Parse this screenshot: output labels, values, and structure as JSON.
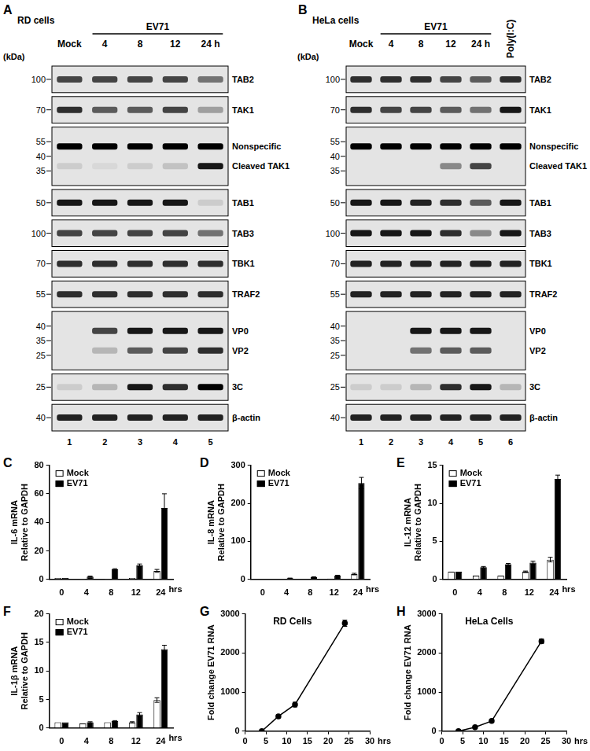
{
  "blots": [
    {
      "panel": "A",
      "title": "RD cells",
      "unit_label": "(kDa)",
      "lanes": [
        {
          "label": "Mock"
        },
        {
          "label": "4",
          "group": "EV71"
        },
        {
          "label": "8",
          "group": "EV71"
        },
        {
          "label": "12",
          "group": "EV71"
        },
        {
          "label": "24 h",
          "group": "EV71"
        }
      ],
      "lane_numbers": [
        1,
        2,
        3,
        4,
        5
      ],
      "rows": [
        {
          "markers": [
            100
          ],
          "bands": [
            {
              "name": "TAB2",
              "intensity": [
                0.7,
                0.7,
                0.7,
                0.7,
                0.5
              ]
            }
          ]
        },
        {
          "markers": [
            70
          ],
          "bands": [
            {
              "name": "TAK1",
              "intensity": [
                0.8,
                0.6,
                0.6,
                0.7,
                0.3
              ]
            }
          ]
        },
        {
          "markers": [
            55,
            40,
            35
          ],
          "bands": [
            {
              "name": "Nonspecific",
              "intensity": [
                1,
                1,
                1,
                1,
                1
              ]
            },
            {
              "name": "Cleaved TAK1",
              "intensity": [
                0.1,
                0.05,
                0.1,
                0.15,
                0.9
              ]
            }
          ]
        },
        {
          "markers": [
            50
          ],
          "bands": [
            {
              "name": "TAB1",
              "intensity": [
                0.9,
                0.9,
                0.9,
                0.9,
                0.1
              ]
            }
          ]
        },
        {
          "markers": [
            100
          ],
          "bands": [
            {
              "name": "TAB3",
              "intensity": [
                0.7,
                0.7,
                0.7,
                0.7,
                0.5
              ]
            }
          ]
        },
        {
          "markers": [
            70
          ],
          "bands": [
            {
              "name": "TBK1",
              "intensity": [
                0.8,
                0.8,
                0.8,
                0.8,
                0.8
              ]
            }
          ]
        },
        {
          "markers": [
            55
          ],
          "bands": [
            {
              "name": "TRAF2",
              "intensity": [
                0.8,
                0.8,
                0.8,
                0.8,
                0.8
              ]
            }
          ]
        },
        {
          "markers": [
            40,
            35,
            25
          ],
          "bands": [
            {
              "name": "VP0",
              "intensity": [
                0,
                0.7,
                0.9,
                0.9,
                0.9
              ]
            },
            {
              "name": "VP2",
              "intensity": [
                0,
                0.2,
                0.6,
                0.7,
                0.8
              ]
            }
          ]
        },
        {
          "markers": [
            25
          ],
          "bands": [
            {
              "name": "3C",
              "intensity": [
                0.1,
                0.2,
                0.9,
                0.8,
                1
              ]
            }
          ]
        },
        {
          "markers": [
            40
          ],
          "bands": [
            {
              "name": "β-actin",
              "intensity": [
                0.85,
                0.85,
                0.85,
                0.85,
                0.85
              ]
            }
          ]
        }
      ]
    },
    {
      "panel": "B",
      "title": "HeLa cells",
      "unit_label": "(kDa)",
      "lanes": [
        {
          "label": "Mock"
        },
        {
          "label": "4",
          "group": "EV71"
        },
        {
          "label": "8",
          "group": "EV71"
        },
        {
          "label": "12",
          "group": "EV71"
        },
        {
          "label": "24 h",
          "group": "EV71"
        },
        {
          "label": "Poly(I:C)"
        }
      ],
      "lane_numbers": [
        1,
        2,
        3,
        4,
        5,
        6
      ],
      "rows": [
        {
          "markers": [
            100
          ],
          "bands": [
            {
              "name": "TAB2",
              "intensity": [
                0.8,
                0.8,
                0.8,
                0.7,
                0.6,
                0.8
              ]
            }
          ]
        },
        {
          "markers": [
            70
          ],
          "bands": [
            {
              "name": "TAK1",
              "intensity": [
                0.8,
                0.7,
                0.7,
                0.6,
                0.5,
                0.9
              ]
            }
          ]
        },
        {
          "markers": [
            55,
            40,
            35
          ],
          "bands": [
            {
              "name": "Nonspecific",
              "intensity": [
                1,
                1,
                1,
                1,
                1,
                1
              ]
            },
            {
              "name": "Cleaved TAK1",
              "intensity": [
                0,
                0,
                0,
                0.4,
                0.7,
                0
              ]
            }
          ]
        },
        {
          "markers": [
            50
          ],
          "bands": [
            {
              "name": "TAB1",
              "intensity": [
                0.9,
                0.9,
                0.85,
                0.8,
                0.6,
                0.9
              ]
            }
          ]
        },
        {
          "markers": [
            100
          ],
          "bands": [
            {
              "name": "TAB3",
              "intensity": [
                0.9,
                0.9,
                0.9,
                0.8,
                0.4,
                0.9
              ]
            }
          ]
        },
        {
          "markers": [
            70
          ],
          "bands": [
            {
              "name": "TBK1",
              "intensity": [
                0.85,
                0.85,
                0.85,
                0.85,
                0.85,
                0.85
              ]
            }
          ]
        },
        {
          "markers": [
            55
          ],
          "bands": [
            {
              "name": "TRAF2",
              "intensity": [
                0.85,
                0.85,
                0.85,
                0.85,
                0.85,
                0.85
              ]
            }
          ]
        },
        {
          "markers": [
            40,
            35,
            25
          ],
          "bands": [
            {
              "name": "VP0",
              "intensity": [
                0,
                0,
                0.9,
                0.9,
                0.9,
                0
              ]
            },
            {
              "name": "VP2",
              "intensity": [
                0,
                0,
                0.5,
                0.6,
                0.6,
                0
              ]
            }
          ]
        },
        {
          "markers": [
            25
          ],
          "bands": [
            {
              "name": "3C",
              "intensity": [
                0.1,
                0.1,
                0.2,
                0.8,
                0.9,
                0.2
              ]
            }
          ]
        },
        {
          "markers": [
            40
          ],
          "bands": [
            {
              "name": "β-actin",
              "intensity": [
                0.85,
                0.85,
                0.85,
                0.85,
                0.85,
                0.85
              ]
            }
          ]
        }
      ]
    }
  ],
  "chart_data": [
    {
      "panel": "C",
      "type": "bar",
      "categories": [
        "0",
        "4",
        "8",
        "12",
        "24"
      ],
      "x_label": "hrs",
      "y_label": [
        "IL-6 mRNA",
        "Relative to GAPDH"
      ],
      "ylim": [
        0,
        80
      ],
      "yticks": [
        0,
        20,
        40,
        60,
        80
      ],
      "grid": false,
      "legend": "upper left",
      "series": [
        {
          "name": "Mock",
          "color": "#ffffff",
          "values": [
            1,
            0.5,
            0.5,
            1,
            6
          ],
          "errors": [
            0,
            0,
            0,
            0,
            1
          ]
        },
        {
          "name": "EV71",
          "color": "#000000",
          "values": [
            1,
            2,
            7,
            10,
            50
          ],
          "errors": [
            0,
            0.3,
            0.5,
            0.8,
            10
          ]
        }
      ]
    },
    {
      "panel": "D",
      "type": "bar",
      "categories": [
        "0",
        "4",
        "8",
        "12",
        "24"
      ],
      "x_label": "hrs",
      "y_label": [
        "IL-8 mRNA",
        "Relative to GAPDH"
      ],
      "ylim": [
        0,
        300
      ],
      "yticks": [
        0,
        100,
        200,
        300
      ],
      "grid": false,
      "legend": "upper left",
      "series": [
        {
          "name": "Mock",
          "color": "#ffffff",
          "values": [
            1,
            1,
            1,
            2,
            14
          ],
          "errors": [
            0,
            0,
            0,
            0,
            2
          ]
        },
        {
          "name": "EV71",
          "color": "#000000",
          "values": [
            1,
            3,
            6,
            10,
            253
          ],
          "errors": [
            0,
            0.5,
            1,
            1,
            15
          ]
        }
      ]
    },
    {
      "panel": "E",
      "type": "bar",
      "categories": [
        "0",
        "4",
        "8",
        "12",
        "24"
      ],
      "x_label": "hrs",
      "y_label": [
        "IL-12 mRNA",
        "Relative to GAPDH"
      ],
      "ylim": [
        0,
        15
      ],
      "yticks": [
        0,
        5,
        10,
        15
      ],
      "grid": false,
      "legend": "upper left",
      "series": [
        {
          "name": "Mock",
          "color": "#ffffff",
          "values": [
            1,
            0.5,
            0.5,
            1,
            2.6
          ],
          "errors": [
            0,
            0,
            0,
            0.1,
            0.3
          ]
        },
        {
          "name": "EV71",
          "color": "#000000",
          "values": [
            1,
            1.6,
            2,
            2.2,
            13.2
          ],
          "errors": [
            0,
            0.1,
            0.1,
            0.2,
            0.5
          ]
        }
      ]
    },
    {
      "panel": "F",
      "type": "bar",
      "categories": [
        "0",
        "4",
        "8",
        "12",
        "24"
      ],
      "x_label": "hrs",
      "y_label": [
        "IL-1β mRNA",
        "Relative to GAPDH"
      ],
      "ylim": [
        0,
        20
      ],
      "yticks": [
        0,
        5,
        10,
        15,
        20
      ],
      "grid": false,
      "legend": "upper left",
      "series": [
        {
          "name": "Mock",
          "color": "#ffffff",
          "values": [
            1,
            0.8,
            1,
            1,
            4.9
          ],
          "errors": [
            0,
            0,
            0,
            0.1,
            0.4
          ]
        },
        {
          "name": "EV71",
          "color": "#000000",
          "values": [
            1,
            1,
            1.2,
            2.4,
            13.8
          ],
          "errors": [
            0,
            0.1,
            0.1,
            0.3,
            0.7
          ]
        }
      ]
    },
    {
      "panel": "G",
      "type": "line",
      "title": "RD Cells",
      "x": [
        4,
        8,
        12,
        24
      ],
      "x_label": "hrs",
      "y_label": [
        "Fold change EV71 RNA"
      ],
      "xlim": [
        0,
        30
      ],
      "xticks": [
        0,
        5,
        10,
        15,
        20,
        25,
        30
      ],
      "ylim": [
        0,
        3000
      ],
      "yticks": [
        0,
        1000,
        2000,
        3000
      ],
      "grid": false,
      "series": [
        {
          "color": "#000000",
          "marker": "circle",
          "values": [
            1,
            380,
            680,
            2760
          ],
          "errors": [
            0,
            40,
            60,
            80
          ]
        }
      ]
    },
    {
      "panel": "H",
      "type": "line",
      "title": "HeLa Cells",
      "x": [
        4,
        8,
        12,
        24
      ],
      "x_label": "hrs",
      "y_label": [
        "Fold change EV71 RNA"
      ],
      "xlim": [
        0,
        30
      ],
      "xticks": [
        0,
        5,
        10,
        15,
        20,
        25,
        30
      ],
      "ylim": [
        0,
        3000
      ],
      "yticks": [
        0,
        1000,
        2000,
        3000
      ],
      "grid": false,
      "series": [
        {
          "color": "#000000",
          "marker": "circle",
          "values": [
            1,
            100,
            260,
            2300
          ],
          "errors": [
            0,
            10,
            20,
            60
          ]
        }
      ]
    }
  ]
}
